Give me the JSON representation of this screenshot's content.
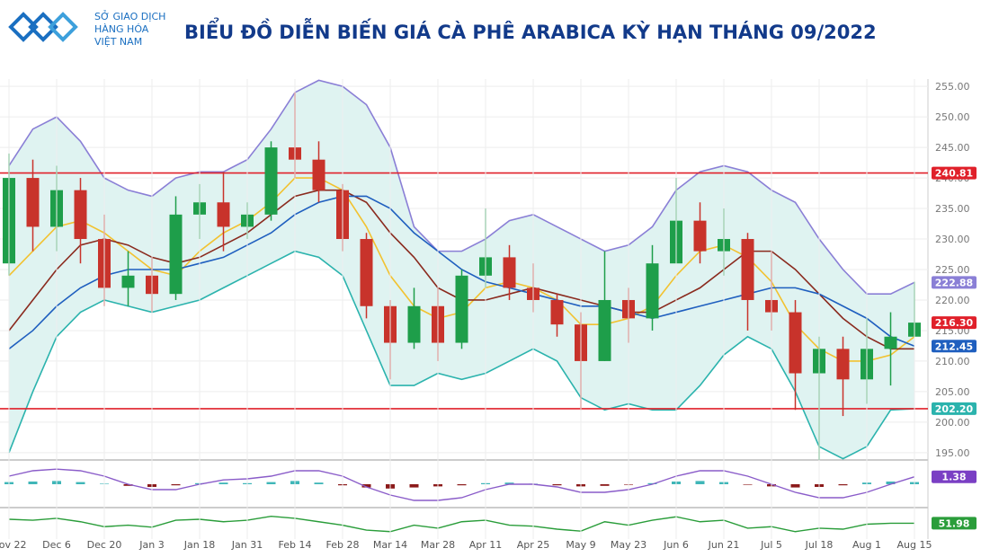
{
  "header": {
    "org": [
      "SỞ GIAO DỊCH",
      "HÀNG HÓA",
      "VIỆT NAM"
    ],
    "title": "BIỂU ĐỒ DIỄN BIẾN GIÁ CÀ PHÊ ARABICA KỲ HẠN THÁNG 09/2022"
  },
  "chart_data": {
    "type": "candlestick",
    "categories": [
      "Nov 22",
      null,
      "Dec 6",
      null,
      "Dec 20",
      null,
      "Jan 3",
      null,
      "Jan 18",
      null,
      "Jan 31",
      null,
      "Feb 14",
      null,
      "Feb 28",
      null,
      "Mar 14",
      null,
      "Mar 28",
      null,
      "Apr 11",
      null,
      "Apr 25",
      null,
      "May 9",
      null,
      "May 23",
      null,
      "Jun 6",
      null,
      "Jun 21",
      null,
      "Jul 5",
      null,
      "Jul 18",
      null,
      "Aug 1",
      null,
      "Aug 15"
    ],
    "open": [
      226,
      240,
      232,
      238,
      230,
      222,
      224,
      221,
      234,
      236,
      232,
      234,
      245,
      243,
      238,
      230,
      219,
      213,
      219,
      213,
      224,
      227,
      222,
      220,
      216,
      210,
      220,
      217,
      226,
      233,
      228,
      230,
      220,
      218,
      208,
      212,
      207,
      212,
      214
    ],
    "high": [
      244,
      243,
      242,
      240,
      234,
      228,
      227,
      237,
      239,
      241,
      236,
      246,
      254,
      246,
      239,
      231,
      220,
      222,
      222,
      225,
      235,
      229,
      226,
      221,
      218,
      228,
      222,
      229,
      240,
      236,
      235,
      231,
      228,
      220,
      214,
      214,
      217,
      218,
      223
    ],
    "low": [
      224,
      228,
      228,
      226,
      219,
      219,
      218,
      220,
      230,
      228,
      230,
      233,
      240,
      236,
      228,
      217,
      207,
      212,
      210,
      212,
      222,
      220,
      218,
      214,
      202,
      210,
      213,
      215,
      226,
      226,
      224,
      215,
      215,
      202,
      193,
      201,
      203,
      206,
      214
    ],
    "close": [
      240,
      232,
      238,
      230,
      222,
      224,
      221,
      234,
      236,
      232,
      234,
      245,
      243,
      238,
      230,
      219,
      213,
      219,
      213,
      224,
      227,
      222,
      220,
      216,
      210,
      220,
      217,
      226,
      233,
      228,
      230,
      220,
      218,
      208,
      212,
      207,
      212,
      214,
      216.3
    ],
    "up_color": "#1e9e4a",
    "down_color": "#c8332b",
    "overlays": [
      {
        "color": "#f2c230",
        "values": [
          224,
          228,
          232,
          233,
          231,
          228,
          225,
          224,
          228,
          231,
          233,
          236,
          240,
          240,
          238,
          232,
          224,
          219,
          217,
          218,
          222,
          223,
          222,
          220,
          216,
          216,
          217,
          219,
          224,
          228,
          229,
          227,
          223,
          216,
          212,
          210,
          210,
          211,
          214
        ]
      },
      {
        "color": "#8a2a1e",
        "values": [
          215,
          220,
          225,
          229,
          230,
          229,
          227,
          226,
          227,
          229,
          231,
          234,
          237,
          238,
          238,
          236,
          231,
          227,
          222,
          220,
          220,
          221,
          222,
          221,
          220,
          219,
          218,
          218,
          220,
          222,
          225,
          228,
          228,
          225,
          221,
          217,
          214,
          212,
          212
        ]
      },
      {
        "color": "#1f5fbf",
        "values": [
          212,
          215,
          219,
          222,
          224,
          225,
          225,
          225,
          226,
          227,
          229,
          231,
          234,
          236,
          237,
          237,
          235,
          231,
          228,
          225,
          223,
          222,
          221,
          220,
          219,
          219,
          218,
          217,
          218,
          219,
          220,
          221,
          222,
          222,
          221,
          219,
          217,
          214,
          212.45
        ]
      }
    ],
    "band": {
      "fill": "#dff3f1",
      "upper": {
        "color": "#8a7fd6",
        "values": [
          242,
          248,
          250,
          246,
          240,
          238,
          237,
          240,
          241,
          241,
          243,
          248,
          254,
          256,
          255,
          252,
          245,
          232,
          228,
          228,
          230,
          233,
          234,
          232,
          230,
          228,
          229,
          232,
          238,
          241,
          242,
          241,
          238,
          236,
          230,
          225,
          221,
          221,
          222.88
        ]
      },
      "lower": {
        "color": "#2bb3ad",
        "values": [
          195,
          205,
          214,
          218,
          220,
          219,
          218,
          219,
          220,
          222,
          224,
          226,
          228,
          227,
          224,
          215,
          206,
          206,
          208,
          207,
          208,
          210,
          212,
          210,
          204,
          202,
          203,
          202,
          202,
          206,
          211,
          214,
          212,
          205,
          196,
          194,
          196,
          202,
          202.2
        ]
      }
    },
    "hlines": [
      {
        "value": 240.81,
        "color": "#e0202a"
      },
      {
        "value": 202.2,
        "color": "#e0202a"
      }
    ],
    "price_labels": [
      {
        "value": 240.81,
        "label": "240.81",
        "color": "#e0202a"
      },
      {
        "value": 222.88,
        "label": "222.88",
        "color": "#8a7fd6"
      },
      {
        "value": 216.3,
        "label": "216.30",
        "color": "#e0202a"
      },
      {
        "value": 212.45,
        "label": "212.45",
        "color": "#1f5fbf"
      },
      {
        "value": 202.2,
        "label": "202.20",
        "color": "#2bb3ad"
      }
    ],
    "ylim": [
      193.8,
      256.2
    ],
    "yticks": [
      {
        "value": 195,
        "label": "195.00"
      },
      {
        "value": 200,
        "label": "200.00"
      },
      {
        "value": 205,
        "label": "205.00"
      },
      {
        "value": 210,
        "label": "210.00"
      },
      {
        "value": 215,
        "label": "215.00"
      },
      {
        "value": 220,
        "label": "220.00"
      },
      {
        "value": 225,
        "label": "225.00"
      },
      {
        "value": 230,
        "label": "230.00"
      },
      {
        "value": 235,
        "label": "235.00"
      },
      {
        "value": 240,
        "label": "240.00"
      },
      {
        "value": 245,
        "label": "245.00"
      },
      {
        "value": 250,
        "label": "250.00"
      },
      {
        "value": 255,
        "label": "255.00"
      }
    ],
    "grid": true,
    "macd": {
      "ylim": [
        -4,
        4
      ],
      "pos_color": "#3fb6b8",
      "neg_color": "#8b1a1a",
      "line_color": "#8a5cc9",
      "histogram": [
        0.4,
        0.5,
        0.6,
        0.4,
        0.1,
        -0.3,
        -0.5,
        -0.2,
        0.2,
        0.3,
        0.2,
        0.4,
        0.6,
        0.3,
        -0.2,
        -0.6,
        -0.8,
        -0.6,
        -0.4,
        -0.2,
        0.2,
        0.3,
        0.1,
        -0.2,
        -0.4,
        -0.3,
        -0.1,
        0.2,
        0.5,
        0.6,
        0.4,
        -0.1,
        -0.4,
        -0.6,
        -0.5,
        -0.2,
        0.3,
        0.5,
        0.4
      ],
      "line": [
        1.5,
        2.5,
        2.8,
        2.5,
        1.5,
        0,
        -1,
        -1,
        0,
        0.8,
        1,
        1.5,
        2.5,
        2.5,
        1.5,
        -0.5,
        -2,
        -3,
        -3,
        -2.5,
        -1,
        0,
        0,
        -0.5,
        -1.5,
        -1.5,
        -1,
        0,
        1.5,
        2.5,
        2.5,
        1.5,
        0,
        -1.5,
        -2.5,
        -2.5,
        -1.5,
        0,
        1.38
      ],
      "label": {
        "value": 1.38,
        "color": "#7a3fc4"
      }
    },
    "rsi": {
      "ylim": [
        20,
        80
      ],
      "color": "#2a9d3a",
      "values": [
        60,
        58,
        62,
        55,
        45,
        48,
        44,
        58,
        60,
        55,
        58,
        66,
        62,
        55,
        48,
        38,
        35,
        48,
        42,
        55,
        58,
        48,
        46,
        40,
        36,
        55,
        48,
        58,
        65,
        55,
        58,
        42,
        45,
        35,
        42,
        40,
        50,
        52,
        51.98
      ],
      "label": {
        "value": 51.98,
        "color": "#2a9d3a"
      }
    }
  }
}
